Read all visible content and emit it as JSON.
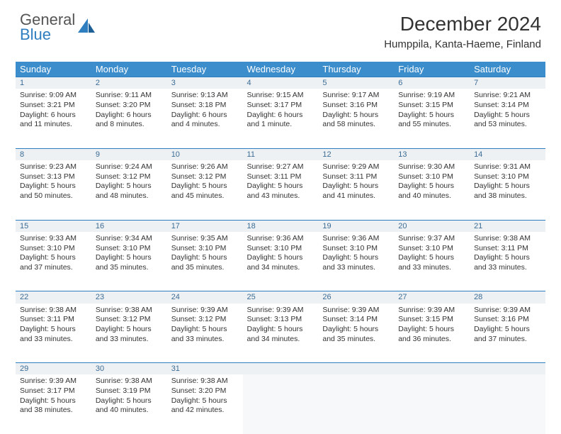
{
  "brand": {
    "line1": "General",
    "line2": "Blue",
    "color_accent": "#2f7ec0"
  },
  "title": "December 2024",
  "location": "Humppila, Kanta-Haeme, Finland",
  "colors": {
    "header_bg": "#3c8dcc",
    "header_text": "#ffffff",
    "daynum_bg": "#eef1f3",
    "daynum_text": "#3b6c96",
    "row_divider": "#2f7ec0",
    "body_text": "#333333",
    "page_bg": "#ffffff"
  },
  "weekdays": [
    "Sunday",
    "Monday",
    "Tuesday",
    "Wednesday",
    "Thursday",
    "Friday",
    "Saturday"
  ],
  "weeks": [
    [
      {
        "n": "1",
        "sunrise": "Sunrise: 9:09 AM",
        "sunset": "Sunset: 3:21 PM",
        "day1": "Daylight: 6 hours",
        "day2": "and 11 minutes."
      },
      {
        "n": "2",
        "sunrise": "Sunrise: 9:11 AM",
        "sunset": "Sunset: 3:20 PM",
        "day1": "Daylight: 6 hours",
        "day2": "and 8 minutes."
      },
      {
        "n": "3",
        "sunrise": "Sunrise: 9:13 AM",
        "sunset": "Sunset: 3:18 PM",
        "day1": "Daylight: 6 hours",
        "day2": "and 4 minutes."
      },
      {
        "n": "4",
        "sunrise": "Sunrise: 9:15 AM",
        "sunset": "Sunset: 3:17 PM",
        "day1": "Daylight: 6 hours",
        "day2": "and 1 minute."
      },
      {
        "n": "5",
        "sunrise": "Sunrise: 9:17 AM",
        "sunset": "Sunset: 3:16 PM",
        "day1": "Daylight: 5 hours",
        "day2": "and 58 minutes."
      },
      {
        "n": "6",
        "sunrise": "Sunrise: 9:19 AM",
        "sunset": "Sunset: 3:15 PM",
        "day1": "Daylight: 5 hours",
        "day2": "and 55 minutes."
      },
      {
        "n": "7",
        "sunrise": "Sunrise: 9:21 AM",
        "sunset": "Sunset: 3:14 PM",
        "day1": "Daylight: 5 hours",
        "day2": "and 53 minutes."
      }
    ],
    [
      {
        "n": "8",
        "sunrise": "Sunrise: 9:23 AM",
        "sunset": "Sunset: 3:13 PM",
        "day1": "Daylight: 5 hours",
        "day2": "and 50 minutes."
      },
      {
        "n": "9",
        "sunrise": "Sunrise: 9:24 AM",
        "sunset": "Sunset: 3:12 PM",
        "day1": "Daylight: 5 hours",
        "day2": "and 48 minutes."
      },
      {
        "n": "10",
        "sunrise": "Sunrise: 9:26 AM",
        "sunset": "Sunset: 3:12 PM",
        "day1": "Daylight: 5 hours",
        "day2": "and 45 minutes."
      },
      {
        "n": "11",
        "sunrise": "Sunrise: 9:27 AM",
        "sunset": "Sunset: 3:11 PM",
        "day1": "Daylight: 5 hours",
        "day2": "and 43 minutes."
      },
      {
        "n": "12",
        "sunrise": "Sunrise: 9:29 AM",
        "sunset": "Sunset: 3:11 PM",
        "day1": "Daylight: 5 hours",
        "day2": "and 41 minutes."
      },
      {
        "n": "13",
        "sunrise": "Sunrise: 9:30 AM",
        "sunset": "Sunset: 3:10 PM",
        "day1": "Daylight: 5 hours",
        "day2": "and 40 minutes."
      },
      {
        "n": "14",
        "sunrise": "Sunrise: 9:31 AM",
        "sunset": "Sunset: 3:10 PM",
        "day1": "Daylight: 5 hours",
        "day2": "and 38 minutes."
      }
    ],
    [
      {
        "n": "15",
        "sunrise": "Sunrise: 9:33 AM",
        "sunset": "Sunset: 3:10 PM",
        "day1": "Daylight: 5 hours",
        "day2": "and 37 minutes."
      },
      {
        "n": "16",
        "sunrise": "Sunrise: 9:34 AM",
        "sunset": "Sunset: 3:10 PM",
        "day1": "Daylight: 5 hours",
        "day2": "and 35 minutes."
      },
      {
        "n": "17",
        "sunrise": "Sunrise: 9:35 AM",
        "sunset": "Sunset: 3:10 PM",
        "day1": "Daylight: 5 hours",
        "day2": "and 35 minutes."
      },
      {
        "n": "18",
        "sunrise": "Sunrise: 9:36 AM",
        "sunset": "Sunset: 3:10 PM",
        "day1": "Daylight: 5 hours",
        "day2": "and 34 minutes."
      },
      {
        "n": "19",
        "sunrise": "Sunrise: 9:36 AM",
        "sunset": "Sunset: 3:10 PM",
        "day1": "Daylight: 5 hours",
        "day2": "and 33 minutes."
      },
      {
        "n": "20",
        "sunrise": "Sunrise: 9:37 AM",
        "sunset": "Sunset: 3:10 PM",
        "day1": "Daylight: 5 hours",
        "day2": "and 33 minutes."
      },
      {
        "n": "21",
        "sunrise": "Sunrise: 9:38 AM",
        "sunset": "Sunset: 3:11 PM",
        "day1": "Daylight: 5 hours",
        "day2": "and 33 minutes."
      }
    ],
    [
      {
        "n": "22",
        "sunrise": "Sunrise: 9:38 AM",
        "sunset": "Sunset: 3:11 PM",
        "day1": "Daylight: 5 hours",
        "day2": "and 33 minutes."
      },
      {
        "n": "23",
        "sunrise": "Sunrise: 9:38 AM",
        "sunset": "Sunset: 3:12 PM",
        "day1": "Daylight: 5 hours",
        "day2": "and 33 minutes."
      },
      {
        "n": "24",
        "sunrise": "Sunrise: 9:39 AM",
        "sunset": "Sunset: 3:12 PM",
        "day1": "Daylight: 5 hours",
        "day2": "and 33 minutes."
      },
      {
        "n": "25",
        "sunrise": "Sunrise: 9:39 AM",
        "sunset": "Sunset: 3:13 PM",
        "day1": "Daylight: 5 hours",
        "day2": "and 34 minutes."
      },
      {
        "n": "26",
        "sunrise": "Sunrise: 9:39 AM",
        "sunset": "Sunset: 3:14 PM",
        "day1": "Daylight: 5 hours",
        "day2": "and 35 minutes."
      },
      {
        "n": "27",
        "sunrise": "Sunrise: 9:39 AM",
        "sunset": "Sunset: 3:15 PM",
        "day1": "Daylight: 5 hours",
        "day2": "and 36 minutes."
      },
      {
        "n": "28",
        "sunrise": "Sunrise: 9:39 AM",
        "sunset": "Sunset: 3:16 PM",
        "day1": "Daylight: 5 hours",
        "day2": "and 37 minutes."
      }
    ],
    [
      {
        "n": "29",
        "sunrise": "Sunrise: 9:39 AM",
        "sunset": "Sunset: 3:17 PM",
        "day1": "Daylight: 5 hours",
        "day2": "and 38 minutes."
      },
      {
        "n": "30",
        "sunrise": "Sunrise: 9:38 AM",
        "sunset": "Sunset: 3:19 PM",
        "day1": "Daylight: 5 hours",
        "day2": "and 40 minutes."
      },
      {
        "n": "31",
        "sunrise": "Sunrise: 9:38 AM",
        "sunset": "Sunset: 3:20 PM",
        "day1": "Daylight: 5 hours",
        "day2": "and 42 minutes."
      },
      null,
      null,
      null,
      null
    ]
  ]
}
